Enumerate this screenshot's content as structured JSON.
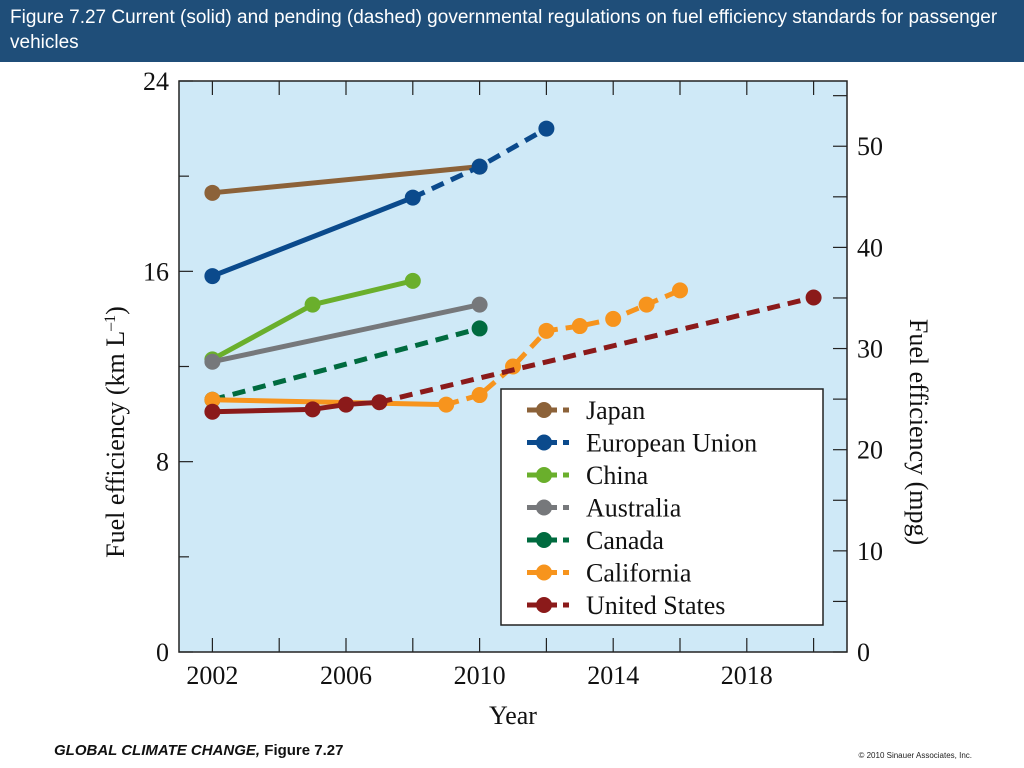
{
  "header": {
    "title": "Figure 7.27  Current (solid) and pending (dashed) governmental regulations on fuel efficiency standards for passenger vehicles"
  },
  "footer": {
    "book": "GLOBAL CLIMATE CHANGE,",
    "figure": " Figure 7.27",
    "copyright": "© 2010 Sinauer Associates, Inc."
  },
  "chart_data": {
    "type": "line",
    "title": "",
    "xlabel": "Year",
    "ylabel": "Fuel efficiency (km L",
    "ylabel_superscript": "–1",
    "ylabel_close": ")",
    "y2label": "Fuel efficiency (mpg)",
    "xlim": [
      2001,
      2021
    ],
    "ylim": [
      0,
      24
    ],
    "y2lim": [
      0,
      56.45
    ],
    "xticks": [
      2002,
      2006,
      2010,
      2014,
      2018
    ],
    "yticks": [
      0,
      8,
      16,
      24
    ],
    "y2ticks": [
      0,
      10,
      20,
      30,
      40,
      50
    ],
    "grid": false,
    "background": "#cfe9f7",
    "legend_position": "bottom-right",
    "series": [
      {
        "name": "Japan",
        "color": "#8c6239",
        "solid": [
          [
            2002,
            19.3
          ],
          [
            2010,
            20.4
          ]
        ],
        "dashed": []
      },
      {
        "name": "European Union",
        "color": "#0b4a8c",
        "solid": [
          [
            2002,
            15.8
          ],
          [
            2008,
            19.1
          ]
        ],
        "dashed": [
          [
            2008,
            19.1
          ],
          [
            2010,
            20.4
          ],
          [
            2012,
            22.0
          ]
        ]
      },
      {
        "name": "China",
        "color": "#6aaf2c",
        "solid": [
          [
            2002,
            12.3
          ],
          [
            2005,
            14.6
          ],
          [
            2008,
            15.6
          ]
        ],
        "dashed": []
      },
      {
        "name": "Australia",
        "color": "#76787b",
        "solid": [
          [
            2002,
            12.2
          ],
          [
            2010,
            14.6
          ]
        ],
        "dashed": []
      },
      {
        "name": "Canada",
        "color": "#006b3f",
        "solid": [],
        "dashed": [
          [
            2002,
            10.6
          ],
          [
            2010,
            13.6
          ]
        ]
      },
      {
        "name": "California",
        "color": "#f7941d",
        "solid": [
          [
            2002,
            10.6
          ],
          [
            2009,
            10.4
          ]
        ],
        "dashed": [
          [
            2009,
            10.4
          ],
          [
            2010,
            10.8
          ],
          [
            2011,
            12.0
          ],
          [
            2012,
            13.5
          ],
          [
            2013,
            13.7
          ],
          [
            2014,
            14.0
          ],
          [
            2015,
            14.6
          ],
          [
            2016,
            15.2
          ]
        ]
      },
      {
        "name": "United States",
        "color": "#8b1a1a",
        "solid": [
          [
            2002,
            10.1
          ],
          [
            2005,
            10.2
          ],
          [
            2006,
            10.4
          ],
          [
            2007,
            10.5
          ]
        ],
        "dashed": [
          [
            2007,
            10.5
          ],
          [
            2020,
            14.9
          ]
        ]
      }
    ]
  }
}
